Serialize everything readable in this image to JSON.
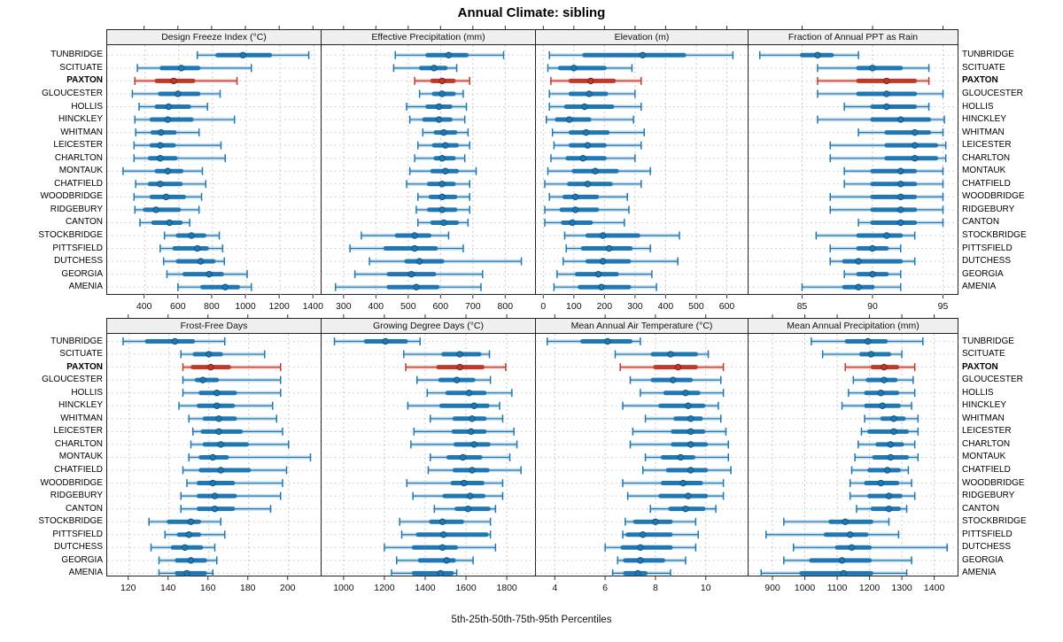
{
  "title": "Annual Climate: sibling",
  "footer": "5th-25th-50th-75th-95th Percentiles",
  "highlight_location": "PAXTON",
  "colors": {
    "blue": "#1f77b4",
    "blue_dark": "#11577f",
    "blue_light": "#a3c9e0",
    "red": "#c0392b",
    "red_dark": "#7f241a",
    "red_light": "#e3a59d",
    "grid": "#c9c9c9",
    "border": "#222222",
    "header_bg": "#f0f0f0",
    "tick": "#333333"
  },
  "locations": [
    "TUNBRIDGE",
    "SCITUATE",
    "PAXTON",
    "GLOUCESTER",
    "HOLLIS",
    "HINCKLEY",
    "WHITMAN",
    "LEICESTER",
    "CHARLTON",
    "MONTAUK",
    "CHATFIELD",
    "WOODBRIDGE",
    "RIDGEBURY",
    "CANTON",
    "STOCKBRIDGE",
    "PITTSFIELD",
    "DUTCHESS",
    "GEORGIA",
    "AMENIA"
  ],
  "chart_data": {
    "type": "percentile-dotplot",
    "layout": "2 rows x 4 columns trellis, shared location axis",
    "percentile_labels": [
      "5th",
      "25th",
      "50th",
      "75th",
      "95th"
    ],
    "panels": [
      {
        "title": "Design Freeze Index (°C)",
        "grid_row": "top",
        "xlim": [
          176,
          1451
        ],
        "ticks": [
          400,
          600,
          800,
          1000,
          1200,
          1400
        ],
        "series": [
          [
            710,
            830,
            980,
            1140,
            1370
          ],
          [
            355,
            500,
            615,
            715,
            1030
          ],
          [
            340,
            470,
            570,
            685,
            945
          ],
          [
            325,
            490,
            595,
            715,
            845
          ],
          [
            365,
            470,
            540,
            660,
            770
          ],
          [
            340,
            440,
            535,
            675,
            930
          ],
          [
            345,
            445,
            495,
            575,
            720
          ],
          [
            335,
            440,
            490,
            570,
            850
          ],
          [
            335,
            430,
            490,
            580,
            875
          ],
          [
            270,
            470,
            535,
            615,
            740
          ],
          [
            345,
            430,
            490,
            610,
            760
          ],
          [
            335,
            440,
            525,
            630,
            735
          ],
          [
            340,
            400,
            465,
            600,
            720
          ],
          [
            370,
            450,
            545,
            610,
            665
          ],
          [
            515,
            595,
            675,
            750,
            840
          ],
          [
            490,
            575,
            710,
            765,
            860
          ],
          [
            510,
            595,
            730,
            805,
            870
          ],
          [
            530,
            635,
            780,
            855,
            1005
          ],
          [
            595,
            740,
            875,
            950,
            1030
          ]
        ]
      },
      {
        "title": "Effective Precipitation (mm)",
        "grid_row": "top",
        "xlim": [
          232,
          895
        ],
        "ticks": [
          300,
          400,
          500,
          600,
          700,
          800
        ],
        "series": [
          [
            460,
            560,
            625,
            680,
            795
          ],
          [
            455,
            540,
            580,
            615,
            650
          ],
          [
            520,
            575,
            605,
            640,
            690
          ],
          [
            535,
            580,
            605,
            640,
            670
          ],
          [
            495,
            560,
            595,
            630,
            680
          ],
          [
            505,
            550,
            595,
            630,
            675
          ],
          [
            545,
            585,
            610,
            645,
            685
          ],
          [
            530,
            580,
            615,
            650,
            690
          ],
          [
            520,
            585,
            605,
            640,
            675
          ],
          [
            505,
            575,
            615,
            650,
            710
          ],
          [
            495,
            565,
            605,
            640,
            690
          ],
          [
            530,
            570,
            605,
            645,
            690
          ],
          [
            525,
            565,
            605,
            645,
            690
          ],
          [
            530,
            575,
            610,
            650,
            685
          ],
          [
            355,
            465,
            520,
            565,
            625
          ],
          [
            320,
            430,
            520,
            585,
            670
          ],
          [
            380,
            495,
            535,
            605,
            850
          ],
          [
            335,
            440,
            510,
            580,
            730
          ],
          [
            275,
            440,
            525,
            590,
            725
          ]
        ]
      },
      {
        "title": "Elevation (m)",
        "grid_row": "top",
        "xlim": [
          -24,
          671
        ],
        "ticks": [
          0,
          100,
          200,
          300,
          400,
          500,
          600
        ],
        "series": [
          [
            20,
            135,
            325,
            460,
            620
          ],
          [
            15,
            55,
            100,
            200,
            290
          ],
          [
            25,
            90,
            155,
            230,
            320
          ],
          [
            20,
            90,
            150,
            205,
            300
          ],
          [
            20,
            75,
            135,
            225,
            320
          ],
          [
            10,
            45,
            85,
            150,
            295
          ],
          [
            30,
            90,
            140,
            210,
            330
          ],
          [
            35,
            90,
            145,
            200,
            320
          ],
          [
            25,
            80,
            130,
            200,
            300
          ],
          [
            15,
            100,
            170,
            240,
            350
          ],
          [
            5,
            85,
            145,
            220,
            320
          ],
          [
            20,
            70,
            105,
            175,
            275
          ],
          [
            5,
            60,
            105,
            175,
            280
          ],
          [
            5,
            65,
            95,
            155,
            265
          ],
          [
            70,
            145,
            195,
            310,
            445
          ],
          [
            75,
            130,
            215,
            285,
            350
          ],
          [
            65,
            145,
            195,
            280,
            440
          ],
          [
            45,
            110,
            180,
            240,
            355
          ],
          [
            35,
            120,
            190,
            280,
            370
          ]
        ]
      },
      {
        "title": "Fraction of Annual PPT as Rain",
        "grid_row": "top",
        "xlim": [
          81.2,
          96.1
        ],
        "ticks": [
          85,
          90,
          95
        ],
        "series": [
          [
            82,
            85,
            86.1,
            87.1,
            89
          ],
          [
            86.1,
            89,
            90,
            92,
            94
          ],
          [
            86.1,
            89,
            91,
            93,
            94
          ],
          [
            86.1,
            89,
            91,
            93,
            95
          ],
          [
            88,
            90,
            91,
            93,
            94
          ],
          [
            86.1,
            90,
            92,
            94,
            95.1
          ],
          [
            89,
            91,
            93,
            94,
            95
          ],
          [
            87,
            91,
            93,
            94.5,
            95.2
          ],
          [
            87,
            91,
            93,
            94.5,
            95.2
          ],
          [
            88,
            90,
            92,
            93,
            95
          ],
          [
            88,
            90,
            92,
            93,
            95
          ],
          [
            87,
            90,
            92,
            93,
            95
          ],
          [
            87,
            90,
            92,
            93,
            95
          ],
          [
            89,
            90,
            92,
            93,
            95
          ],
          [
            86,
            89,
            91,
            92,
            93
          ],
          [
            87,
            89,
            90,
            91,
            92
          ],
          [
            87,
            88,
            89,
            92,
            93
          ],
          [
            88,
            89,
            90,
            91,
            92
          ],
          [
            85,
            88,
            89,
            90,
            92
          ]
        ]
      },
      {
        "title": "Frost-Free Days",
        "grid_row": "bottom",
        "xlim": [
          109,
          217
        ],
        "ticks": [
          120,
          140,
          160,
          180,
          200
        ],
        "series": [
          [
            117,
            129,
            143,
            152,
            168
          ],
          [
            146,
            153,
            160,
            166,
            188
          ],
          [
            147,
            152,
            161,
            170,
            196
          ],
          [
            147,
            154,
            157,
            164,
            196
          ],
          [
            147,
            156,
            164,
            173,
            196
          ],
          [
            145,
            155,
            164,
            172,
            192
          ],
          [
            150,
            158,
            165,
            173,
            194
          ],
          [
            152,
            157,
            165,
            176,
            197
          ],
          [
            151,
            158,
            166,
            179,
            200
          ],
          [
            150,
            156,
            162,
            169,
            211
          ],
          [
            147,
            156,
            166,
            180,
            199
          ],
          [
            149,
            155,
            162,
            172,
            197
          ],
          [
            146,
            155,
            163,
            173,
            196
          ],
          [
            146,
            155,
            163,
            172,
            191
          ],
          [
            130,
            140,
            151,
            155,
            166
          ],
          [
            138,
            145,
            150,
            155,
            168
          ],
          [
            131,
            142,
            148,
            156,
            163
          ],
          [
            135,
            144,
            151,
            158,
            164
          ],
          [
            135,
            144,
            149,
            158,
            162
          ]
        ]
      },
      {
        "title": "Growing Degree Days (°C)",
        "grid_row": "bottom",
        "xlim": [
          892,
          1943
        ],
        "ticks": [
          1000,
          1200,
          1400,
          1600,
          1800
        ],
        "series": [
          [
            955,
            1110,
            1205,
            1305,
            1375
          ],
          [
            1295,
            1490,
            1570,
            1665,
            1715
          ],
          [
            1305,
            1465,
            1570,
            1680,
            1795
          ],
          [
            1360,
            1475,
            1555,
            1635,
            1720
          ],
          [
            1410,
            1510,
            1615,
            1690,
            1825
          ],
          [
            1315,
            1480,
            1640,
            1705,
            1765
          ],
          [
            1425,
            1545,
            1630,
            1690,
            1780
          ],
          [
            1345,
            1540,
            1625,
            1690,
            1835
          ],
          [
            1330,
            1550,
            1640,
            1710,
            1850
          ],
          [
            1425,
            1515,
            1585,
            1670,
            1815
          ],
          [
            1415,
            1545,
            1630,
            1705,
            1870
          ],
          [
            1310,
            1535,
            1590,
            1680,
            1780
          ],
          [
            1340,
            1495,
            1620,
            1685,
            1780
          ],
          [
            1445,
            1555,
            1610,
            1710,
            1745
          ],
          [
            1275,
            1430,
            1485,
            1580,
            1720
          ],
          [
            1285,
            1365,
            1490,
            1700,
            1720
          ],
          [
            1200,
            1345,
            1485,
            1550,
            1745
          ],
          [
            1260,
            1375,
            1505,
            1540,
            1635
          ],
          [
            1235,
            1345,
            1475,
            1530,
            1555
          ]
        ]
      },
      {
        "title": "Mean Annual Air Temperature (°C)",
        "grid_row": "bottom",
        "xlim": [
          3.25,
          11.7
        ],
        "ticks": [
          4,
          6,
          8,
          10
        ],
        "series": [
          [
            3.7,
            5.1,
            6.1,
            7.0,
            7.4
          ],
          [
            6.4,
            7.9,
            8.6,
            9.6,
            10.1
          ],
          [
            6.6,
            8.0,
            8.9,
            9.6,
            10.7
          ],
          [
            7.0,
            7.9,
            8.7,
            9.4,
            10.6
          ],
          [
            7.4,
            8.4,
            9.2,
            9.7,
            10.7
          ],
          [
            6.7,
            8.2,
            9.3,
            9.9,
            10.5
          ],
          [
            7.6,
            8.8,
            9.4,
            9.8,
            10.6
          ],
          [
            7.1,
            8.7,
            9.4,
            9.9,
            10.8
          ],
          [
            7.0,
            8.7,
            9.4,
            10.0,
            10.9
          ],
          [
            7.6,
            8.3,
            9.0,
            9.5,
            10.9
          ],
          [
            7.5,
            8.5,
            9.4,
            10.0,
            11.0
          ],
          [
            6.7,
            8.3,
            9.1,
            9.8,
            10.7
          ],
          [
            6.9,
            8.2,
            9.3,
            10.0,
            10.7
          ],
          [
            7.8,
            8.6,
            9.2,
            9.9,
            10.4
          ],
          [
            6.8,
            7.2,
            8.0,
            8.6,
            9.6
          ],
          [
            6.7,
            6.9,
            7.5,
            8.6,
            9.7
          ],
          [
            6.0,
            6.7,
            7.4,
            8.6,
            9.6
          ],
          [
            6.5,
            6.8,
            7.4,
            8.3,
            9.2
          ],
          [
            6.3,
            6.8,
            7.3,
            7.6,
            8.6
          ]
        ]
      },
      {
        "title": "Mean Annual Precipitation (mm)",
        "grid_row": "bottom",
        "xlim": [
          826,
          1475
        ],
        "ticks": [
          900,
          1000,
          1100,
          1200,
          1300,
          1400
        ],
        "series": [
          [
            1020,
            1130,
            1195,
            1250,
            1365
          ],
          [
            1055,
            1175,
            1205,
            1260,
            1300
          ],
          [
            1125,
            1210,
            1245,
            1285,
            1340
          ],
          [
            1150,
            1195,
            1245,
            1280,
            1335
          ],
          [
            1135,
            1190,
            1235,
            1285,
            1340
          ],
          [
            1115,
            1190,
            1240,
            1290,
            1330
          ],
          [
            1185,
            1240,
            1275,
            1305,
            1350
          ],
          [
            1175,
            1200,
            1275,
            1315,
            1350
          ],
          [
            1165,
            1225,
            1265,
            1300,
            1340
          ],
          [
            1155,
            1215,
            1265,
            1315,
            1350
          ],
          [
            1145,
            1200,
            1255,
            1290,
            1320
          ],
          [
            1140,
            1190,
            1235,
            1285,
            1330
          ],
          [
            1140,
            1200,
            1260,
            1295,
            1340
          ],
          [
            1160,
            1210,
            1260,
            1290,
            1315
          ],
          [
            935,
            1080,
            1125,
            1205,
            1260
          ],
          [
            880,
            1065,
            1140,
            1190,
            1290
          ],
          [
            965,
            1100,
            1145,
            1200,
            1440
          ],
          [
            935,
            1020,
            1115,
            1200,
            1330
          ],
          [
            865,
            990,
            1120,
            1205,
            1315
          ]
        ]
      }
    ]
  }
}
